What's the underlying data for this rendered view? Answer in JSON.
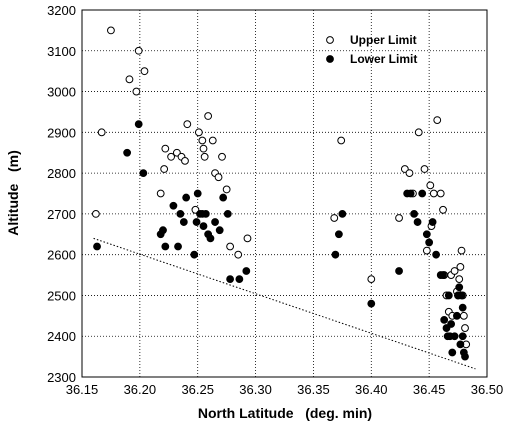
{
  "chart_data": {
    "type": "scatter",
    "title": "",
    "xlabel": "North Latitude   (deg. min)",
    "ylabel": "Altitude   (m)",
    "xlim": [
      36.15,
      36.5
    ],
    "ylim": [
      2300,
      3200
    ],
    "xticks": [
      "36.15",
      "36.20",
      "36.25",
      "36.30",
      "36.35",
      "36.40",
      "36.45",
      "36.50"
    ],
    "yticks": [
      "2300",
      "2400",
      "2500",
      "2600",
      "2700",
      "2800",
      "2900",
      "3000",
      "3100",
      "3200"
    ],
    "grid": true,
    "legend_position": "top-right",
    "series": [
      {
        "name": "Upper Limit",
        "marker": "open-circle",
        "color": "#000000",
        "points": [
          [
            36.162,
            2700
          ],
          [
            36.167,
            2900
          ],
          [
            36.175,
            3150
          ],
          [
            36.191,
            3030
          ],
          [
            36.197,
            3000
          ],
          [
            36.199,
            3100
          ],
          [
            36.204,
            3050
          ],
          [
            36.218,
            2750
          ],
          [
            36.221,
            2810
          ],
          [
            36.222,
            2860
          ],
          [
            36.227,
            2840
          ],
          [
            36.232,
            2850
          ],
          [
            36.236,
            2840
          ],
          [
            36.239,
            2830
          ],
          [
            36.241,
            2920
          ],
          [
            36.248,
            2710
          ],
          [
            36.251,
            2900
          ],
          [
            36.254,
            2880
          ],
          [
            36.255,
            2860
          ],
          [
            36.256,
            2840
          ],
          [
            36.259,
            2940
          ],
          [
            36.263,
            2880
          ],
          [
            36.265,
            2800
          ],
          [
            36.268,
            2790
          ],
          [
            36.271,
            2840
          ],
          [
            36.275,
            2760
          ],
          [
            36.278,
            2620
          ],
          [
            36.285,
            2600
          ],
          [
            36.293,
            2640
          ],
          [
            36.368,
            2690
          ],
          [
            36.374,
            2880
          ],
          [
            36.4,
            2540
          ],
          [
            36.424,
            2690
          ],
          [
            36.429,
            2810
          ],
          [
            36.433,
            2800
          ],
          [
            36.436,
            2750
          ],
          [
            36.441,
            2900
          ],
          [
            36.446,
            2810
          ],
          [
            36.448,
            2610
          ],
          [
            36.451,
            2770
          ],
          [
            36.452,
            2670
          ],
          [
            36.454,
            2750
          ],
          [
            36.457,
            2930
          ],
          [
            36.46,
            2750
          ],
          [
            36.462,
            2710
          ],
          [
            36.463,
            2550
          ],
          [
            36.465,
            2500
          ],
          [
            36.467,
            2460
          ],
          [
            36.469,
            2550
          ],
          [
            36.47,
            2450
          ],
          [
            36.472,
            2560
          ],
          [
            36.474,
            2510
          ],
          [
            36.476,
            2540
          ],
          [
            36.477,
            2570
          ],
          [
            36.478,
            2610
          ],
          [
            36.479,
            2500
          ],
          [
            36.48,
            2450
          ],
          [
            36.481,
            2420
          ],
          [
            36.482,
            2380
          ]
        ]
      },
      {
        "name": "Lower Limit",
        "marker": "filled-circle",
        "color": "#000000",
        "points": [
          [
            36.163,
            2620
          ],
          [
            36.189,
            2850
          ],
          [
            36.199,
            2920
          ],
          [
            36.203,
            2800
          ],
          [
            36.218,
            2650
          ],
          [
            36.22,
            2660
          ],
          [
            36.222,
            2620
          ],
          [
            36.229,
            2720
          ],
          [
            36.233,
            2620
          ],
          [
            36.235,
            2700
          ],
          [
            36.238,
            2680
          ],
          [
            36.24,
            2740
          ],
          [
            36.247,
            2600
          ],
          [
            36.249,
            2680
          ],
          [
            36.25,
            2750
          ],
          [
            36.252,
            2700
          ],
          [
            36.254,
            2700
          ],
          [
            36.255,
            2670
          ],
          [
            36.257,
            2700
          ],
          [
            36.259,
            2650
          ],
          [
            36.261,
            2640
          ],
          [
            36.265,
            2680
          ],
          [
            36.269,
            2660
          ],
          [
            36.272,
            2740
          ],
          [
            36.276,
            2700
          ],
          [
            36.278,
            2540
          ],
          [
            36.286,
            2540
          ],
          [
            36.292,
            2560
          ],
          [
            36.369,
            2600
          ],
          [
            36.372,
            2650
          ],
          [
            36.375,
            2700
          ],
          [
            36.4,
            2480
          ],
          [
            36.424,
            2560
          ],
          [
            36.431,
            2750
          ],
          [
            36.434,
            2750
          ],
          [
            36.437,
            2700
          ],
          [
            36.44,
            2680
          ],
          [
            36.444,
            2750
          ],
          [
            36.448,
            2650
          ],
          [
            36.45,
            2630
          ],
          [
            36.453,
            2680
          ],
          [
            36.456,
            2600
          ],
          [
            36.46,
            2550
          ],
          [
            36.462,
            2550
          ],
          [
            36.463,
            2440
          ],
          [
            36.465,
            2420
          ],
          [
            36.466,
            2400
          ],
          [
            36.467,
            2500
          ],
          [
            36.468,
            2400
          ],
          [
            36.469,
            2430
          ],
          [
            36.47,
            2360
          ],
          [
            36.472,
            2400
          ],
          [
            36.474,
            2450
          ],
          [
            36.475,
            2500
          ],
          [
            36.476,
            2520
          ],
          [
            36.477,
            2380
          ],
          [
            36.478,
            2500
          ],
          [
            36.479,
            2400
          ],
          [
            36.48,
            2360
          ],
          [
            36.481,
            2350
          ],
          [
            36.475,
            2500
          ],
          [
            36.479,
            2470
          ]
        ]
      }
    ],
    "trend_line": {
      "style": "dotted",
      "from": [
        36.16,
        2640
      ],
      "to": [
        36.49,
        2320
      ]
    }
  }
}
